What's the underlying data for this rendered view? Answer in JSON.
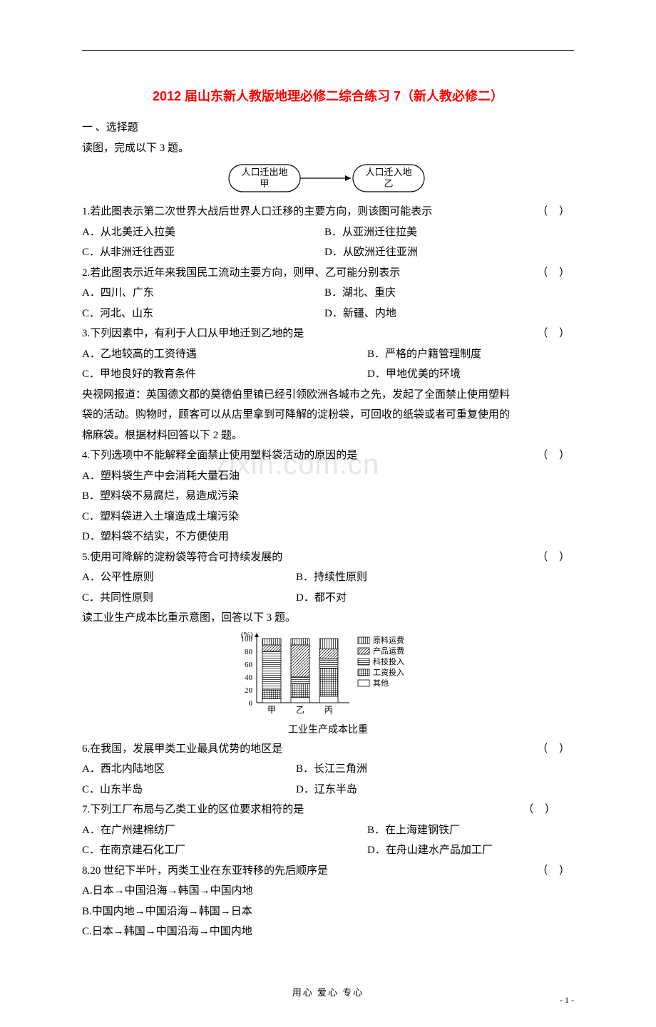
{
  "title": "2012 届山东新人教版地理必修二综合练习 7（新人教必修二）",
  "section1": "一  、选择题",
  "intro1": "读图，完成以下 3 题。",
  "diagram1": {
    "left_label_top": "人口迁出地",
    "left_label_bottom": "甲",
    "right_label_top": "人口迁入地",
    "right_label_bottom": "乙",
    "box_stroke": "#000000",
    "fontsize": 12
  },
  "q1": "1.若此图表示第二次世界大战后世界人口迁移的主要方向，则该图可能表示",
  "q1a": "A．从北美迁入拉美",
  "q1b": "B．从亚洲迁往拉美",
  "q1c": "C．从非洲迁往西亚",
  "q1d": "D．从欧洲迁往亚洲",
  "q2": "2.若此图表示近年来我国民工流动主要方向，则甲、乙可能分别表示",
  "q2a": "A．四川、广东",
  "q2b": "B．湖北、重庆",
  "q2c": "C．河北、山东",
  "q2d": "D．新疆、内地",
  "q3": "3.下列因素中，有利于人口从甲地迁到乙地的是",
  "q3a": "A．乙地较高的工资待遇",
  "q3b": "B．严格的户籍管理制度",
  "q3c": "C．甲地良好的教育条件",
  "q3d": "D．甲地优美的环境",
  "intro2a": "央视网报道：英国德文郡的莫德伯里镇已经引领欧洲各城市之先，发起了全面禁止使用塑料",
  "intro2b": "袋的活动。购物时，顾客可以从店里拿到可降解的淀粉袋，可回收的纸袋或者可重复使用的",
  "intro2c": "棉麻袋。根据材料回答以下 2 题。",
  "q4": "4.下列选项中不能解释全面禁止使用塑料袋活动的原因的是",
  "q4a": "A．塑料袋生产中会消耗大量石油",
  "q4b": "B．塑料袋不易腐烂，易造成污染",
  "q4c": "C．塑料袋进入土壤造成土壤污染",
  "q4d": "D．塑料袋不结实，不方便使用",
  "q5": "5.使用可降解的淀粉袋等符合可持续发展的",
  "q5a": "A．公平性原则",
  "q5b": "B．持续性原则",
  "q5c": "C．共同性原则",
  "q5d": "D．都不对",
  "intro3": "读工业生产成本比重示意图，回答以下 3 题。",
  "chart": {
    "type": "stacked-bar",
    "categories": [
      "甲",
      "乙",
      "丙"
    ],
    "y_unit": "(%)",
    "yticks": [
      0,
      20,
      40,
      60,
      80,
      100
    ],
    "legend": [
      "原料运费",
      "产品运费",
      "科技投入",
      "工资投入",
      "其他"
    ],
    "legend_patterns": [
      "vlines",
      "diag",
      "hlines",
      "grid",
      "blank"
    ],
    "bars": {
      "甲": [
        10,
        10,
        60,
        14,
        6
      ],
      "乙": [
        10,
        50,
        10,
        22,
        8
      ],
      "丙": [
        16,
        16,
        14,
        44,
        10
      ]
    },
    "stroke": "#000000",
    "font_size": 11,
    "caption": "工业生产成本比重"
  },
  "q6": "6.在我国，发展甲类工业最具优势的地区是",
  "q6a": "A．西北内陆地区",
  "q6b": "B．长江三角洲",
  "q6c": "C．山东半岛",
  "q6d": "D．辽东半岛",
  "q7": "7.下列工厂布局与乙类工业的区位要求相符的是",
  "q7a": "A．在广州建棉纺厂",
  "q7b": "B．在上海建钢铁厂",
  "q7c": "C．在南京建石化工厂",
  "q7d": "D．在舟山建水产品加工厂",
  "q8": "8.20 世纪下半叶，丙类工业在东亚转移的先后顺序是",
  "q8a": "A.日本→中国沿海→韩国→中国内地",
  "q8b": "B.中国内地→中国沿海→韩国→日本",
  "q8c": "C.日本→韩国→中国沿海→中国内地",
  "paren": "（    ）",
  "footer": "用心  爱心  专心",
  "pagenum": "- 1 -",
  "watermark": "zixin.com.cn"
}
